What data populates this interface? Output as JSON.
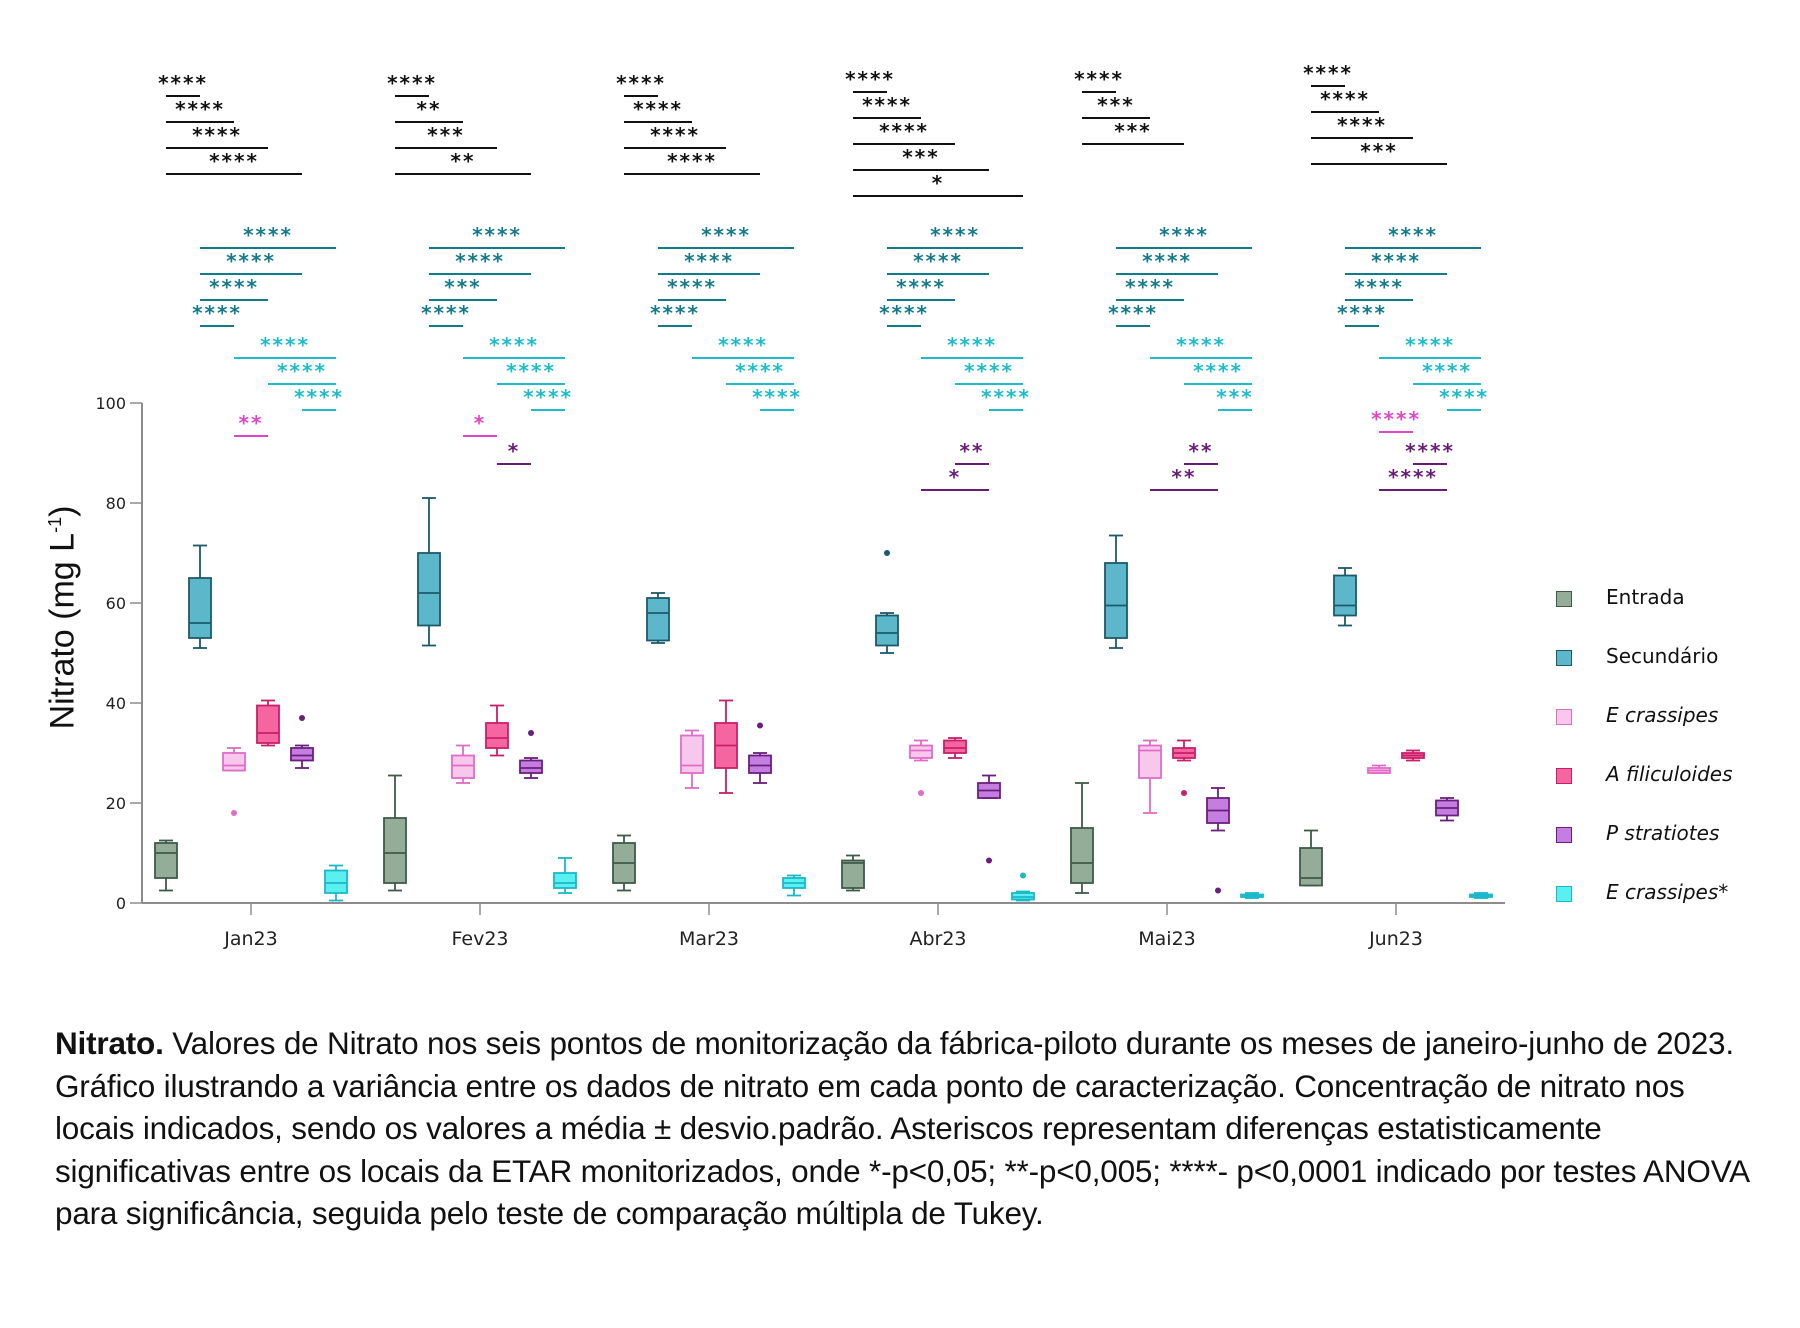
{
  "chart_data": {
    "type": "boxplot",
    "ylabel": "Nitrato (mg L",
    "ylabel_sup": "-1",
    "ylabel_close": ")",
    "ylim": [
      0,
      100
    ],
    "yticks": [
      "0",
      "20",
      "40",
      "60",
      "80",
      "100"
    ],
    "ytick_values": [
      0,
      20,
      40,
      60,
      80,
      100
    ],
    "categories": [
      "Jan23",
      "Fev23",
      "Mar23",
      "Abr23",
      "Mai23",
      "Jun23"
    ],
    "legend_position": "right",
    "series": [
      {
        "name": "Entrada",
        "italic": false,
        "fill": "#94ad98",
        "stroke": "#3f5a48",
        "boxes": [
          {
            "min": 2.5,
            "q1": 5,
            "median": 10,
            "q3": 12,
            "max": 12.5,
            "outliers": []
          },
          {
            "min": 2.5,
            "q1": 4,
            "median": 10,
            "q3": 17,
            "max": 25.5,
            "outliers": []
          },
          {
            "min": 2.5,
            "q1": 4,
            "median": 8,
            "q3": 12,
            "max": 13.5,
            "outliers": []
          },
          {
            "min": 2.5,
            "q1": 3,
            "median": 8,
            "q3": 8.5,
            "max": 9.5,
            "outliers": []
          },
          {
            "min": 2,
            "q1": 4,
            "median": 8,
            "q3": 15,
            "max": 24,
            "outliers": []
          },
          {
            "min": 3.5,
            "q1": 3.5,
            "median": 5,
            "q3": 11,
            "max": 14.5,
            "outliers": []
          }
        ]
      },
      {
        "name": "Secundário",
        "italic": false,
        "fill": "#5bb7c9",
        "stroke": "#1b5a6b",
        "boxes": [
          {
            "min": 51,
            "q1": 53,
            "median": 56,
            "q3": 65,
            "max": 71.5,
            "outliers": []
          },
          {
            "min": 51.5,
            "q1": 55.5,
            "median": 62,
            "q3": 70,
            "max": 81,
            "outliers": []
          },
          {
            "min": 52,
            "q1": 52.5,
            "median": 58,
            "q3": 61,
            "max": 62,
            "outliers": []
          },
          {
            "min": 50,
            "q1": 51.5,
            "median": 54,
            "q3": 57.5,
            "max": 58,
            "outliers": [
              70
            ]
          },
          {
            "min": 51,
            "q1": 53,
            "median": 59.5,
            "q3": 68,
            "max": 73.5,
            "outliers": []
          },
          {
            "min": 55.5,
            "q1": 57.5,
            "median": 59.5,
            "q3": 65.5,
            "max": 67,
            "outliers": []
          }
        ]
      },
      {
        "name": "E crassipes",
        "italic": true,
        "fill": "#f8c8ec",
        "stroke": "#e06cc8",
        "boxes": [
          {
            "min": 26.5,
            "q1": 26.5,
            "median": 27.5,
            "q3": 30,
            "max": 31,
            "outliers": [
              18
            ]
          },
          {
            "min": 24,
            "q1": 25,
            "median": 27.5,
            "q3": 29.5,
            "max": 31.5,
            "outliers": []
          },
          {
            "min": 23,
            "q1": 26,
            "median": 27.5,
            "q3": 33.5,
            "max": 34.5,
            "outliers": []
          },
          {
            "min": 28.5,
            "q1": 29,
            "median": 30.5,
            "q3": 31.5,
            "max": 32.5,
            "outliers": [
              22
            ]
          },
          {
            "min": 18,
            "q1": 25,
            "median": 30.5,
            "q3": 31.5,
            "max": 32.5,
            "outliers": []
          },
          {
            "min": 26,
            "q1": 26,
            "median": 26.5,
            "q3": 27,
            "max": 27.5,
            "outliers": []
          }
        ]
      },
      {
        "name": "A filiculoides",
        "italic": true,
        "fill": "#f565a0",
        "stroke": "#c91e6a",
        "boxes": [
          {
            "min": 31.5,
            "q1": 32,
            "median": 34,
            "q3": 39.5,
            "max": 40.5,
            "outliers": []
          },
          {
            "min": 29.5,
            "q1": 31,
            "median": 33,
            "q3": 36,
            "max": 39.5,
            "outliers": []
          },
          {
            "min": 22,
            "q1": 27,
            "median": 31.5,
            "q3": 36,
            "max": 40.5,
            "outliers": []
          },
          {
            "min": 29,
            "q1": 30,
            "median": 31,
            "q3": 32.5,
            "max": 33,
            "outliers": []
          },
          {
            "min": 28.5,
            "q1": 29,
            "median": 30,
            "q3": 31,
            "max": 32.5,
            "outliers": [
              22
            ]
          },
          {
            "min": 28.5,
            "q1": 29,
            "median": 29.5,
            "q3": 30,
            "max": 30.5,
            "outliers": []
          }
        ]
      },
      {
        "name": "P stratiotes",
        "italic": true,
        "fill": "#c47ee0",
        "stroke": "#6b1e7e",
        "boxes": [
          {
            "min": 27,
            "q1": 28.5,
            "median": 29.5,
            "q3": 31,
            "max": 31.5,
            "outliers": [
              37
            ]
          },
          {
            "min": 25,
            "q1": 26,
            "median": 27,
            "q3": 28.5,
            "max": 29,
            "outliers": [
              34
            ]
          },
          {
            "min": 24,
            "q1": 26,
            "median": 27.5,
            "q3": 29.5,
            "max": 30,
            "outliers": [
              35.5
            ]
          },
          {
            "min": 21,
            "q1": 21,
            "median": 22.5,
            "q3": 24,
            "max": 25.5,
            "outliers": [
              8.5
            ]
          },
          {
            "min": 14.5,
            "q1": 16,
            "median": 18.5,
            "q3": 21,
            "max": 23,
            "outliers": [
              2.5
            ]
          },
          {
            "min": 16.5,
            "q1": 17.5,
            "median": 19,
            "q3": 20.5,
            "max": 21,
            "outliers": []
          }
        ]
      },
      {
        "name": "E crassipes*",
        "italic": true,
        "fill": "#5af0f0",
        "stroke": "#1ab8c8",
        "boxes": [
          {
            "min": 0.5,
            "q1": 2,
            "median": 4,
            "q3": 6.5,
            "max": 7.5,
            "outliers": []
          },
          {
            "min": 2,
            "q1": 3,
            "median": 4,
            "q3": 6,
            "max": 9,
            "outliers": []
          },
          {
            "min": 1.5,
            "q1": 3,
            "median": 4,
            "q3": 5,
            "max": 5.5,
            "outliers": []
          },
          {
            "min": 0.5,
            "q1": 0.7,
            "median": 1.2,
            "q3": 2,
            "max": 2.3,
            "outliers": [
              5.5
            ]
          },
          {
            "min": 1,
            "q1": 1.2,
            "median": 1.5,
            "q3": 1.7,
            "max": 2,
            "outliers": []
          },
          {
            "min": 1,
            "q1": 1.2,
            "median": 1.5,
            "q3": 1.7,
            "max": 2,
            "outliers": []
          }
        ]
      }
    ],
    "significance": [
      {
        "month": "Jan23",
        "groups": [
          {
            "color": "#111111",
            "pairs": [
              [
                0,
                1,
                "****"
              ],
              [
                0,
                2,
                "****"
              ],
              [
                0,
                3,
                "****"
              ],
              [
                0,
                4,
                "****"
              ]
            ]
          },
          {
            "color": "#137a8c",
            "pairs": [
              [
                1,
                5,
                "****"
              ],
              [
                1,
                4,
                "****"
              ],
              [
                1,
                3,
                "****"
              ],
              [
                1,
                2,
                "****"
              ]
            ]
          },
          {
            "color": "#1cbccc",
            "pairs": [
              [
                2,
                5,
                "****"
              ],
              [
                3,
                5,
                "****"
              ],
              [
                4,
                5,
                "****"
              ]
            ]
          },
          {
            "color": "#e246c8",
            "pairs": [
              [
                2,
                3,
                "**"
              ]
            ]
          }
        ]
      },
      {
        "month": "Fev23",
        "groups": [
          {
            "color": "#111111",
            "pairs": [
              [
                0,
                1,
                "****"
              ],
              [
                0,
                2,
                "**"
              ],
              [
                0,
                3,
                "***"
              ],
              [
                0,
                4,
                "**"
              ]
            ]
          },
          {
            "color": "#137a8c",
            "pairs": [
              [
                1,
                5,
                "****"
              ],
              [
                1,
                4,
                "****"
              ],
              [
                1,
                3,
                "***"
              ],
              [
                1,
                2,
                "****"
              ]
            ]
          },
          {
            "color": "#1cbccc",
            "pairs": [
              [
                2,
                5,
                "****"
              ],
              [
                3,
                5,
                "****"
              ],
              [
                4,
                5,
                "****"
              ]
            ]
          },
          {
            "color": "#e246c8",
            "pairs": [
              [
                2,
                3,
                "*"
              ]
            ]
          },
          {
            "color": "#6a1b78",
            "pairs": [
              [
                3,
                4,
                "*"
              ]
            ]
          }
        ]
      },
      {
        "month": "Mar23",
        "groups": [
          {
            "color": "#111111",
            "pairs": [
              [
                0,
                1,
                "****"
              ],
              [
                0,
                2,
                "****"
              ],
              [
                0,
                3,
                "****"
              ],
              [
                0,
                4,
                "****"
              ]
            ]
          },
          {
            "color": "#137a8c",
            "pairs": [
              [
                1,
                5,
                "****"
              ],
              [
                1,
                4,
                "****"
              ],
              [
                1,
                3,
                "****"
              ],
              [
                1,
                2,
                "****"
              ]
            ]
          },
          {
            "color": "#1cbccc",
            "pairs": [
              [
                2,
                5,
                "****"
              ],
              [
                3,
                5,
                "****"
              ],
              [
                4,
                5,
                "****"
              ]
            ]
          }
        ]
      },
      {
        "month": "Abr23",
        "groups": [
          {
            "color": "#111111",
            "pairs": [
              [
                0,
                1,
                "****"
              ],
              [
                0,
                2,
                "****"
              ],
              [
                0,
                3,
                "****"
              ],
              [
                0,
                4,
                "***"
              ],
              [
                0,
                5,
                "*"
              ]
            ]
          },
          {
            "color": "#137a8c",
            "pairs": [
              [
                1,
                5,
                "****"
              ],
              [
                1,
                4,
                "****"
              ],
              [
                1,
                3,
                "****"
              ],
              [
                1,
                2,
                "****"
              ]
            ]
          },
          {
            "color": "#1cbccc",
            "pairs": [
              [
                2,
                5,
                "****"
              ],
              [
                3,
                5,
                "****"
              ],
              [
                4,
                5,
                "****"
              ]
            ]
          },
          {
            "color": "#6a1b78",
            "pairs": [
              [
                3,
                4,
                "**"
              ],
              [
                2,
                4,
                "*"
              ]
            ]
          }
        ]
      },
      {
        "month": "Mai23",
        "groups": [
          {
            "color": "#111111",
            "pairs": [
              [
                0,
                1,
                "****"
              ],
              [
                0,
                2,
                "***"
              ],
              [
                0,
                3,
                "***"
              ]
            ]
          },
          {
            "color": "#137a8c",
            "pairs": [
              [
                1,
                5,
                "****"
              ],
              [
                1,
                4,
                "****"
              ],
              [
                1,
                3,
                "****"
              ],
              [
                1,
                2,
                "****"
              ]
            ]
          },
          {
            "color": "#1cbccc",
            "pairs": [
              [
                2,
                5,
                "****"
              ],
              [
                3,
                5,
                "****"
              ],
              [
                4,
                5,
                "***"
              ]
            ]
          },
          {
            "color": "#6a1b78",
            "pairs": [
              [
                3,
                4,
                "**"
              ],
              [
                2,
                4,
                "**"
              ]
            ]
          }
        ]
      },
      {
        "month": "Jun23",
        "groups": [
          {
            "color": "#111111",
            "pairs": [
              [
                0,
                1,
                "****"
              ],
              [
                0,
                2,
                "****"
              ],
              [
                0,
                3,
                "****"
              ],
              [
                0,
                4,
                "***"
              ]
            ]
          },
          {
            "color": "#137a8c",
            "pairs": [
              [
                1,
                5,
                "****"
              ],
              [
                1,
                4,
                "****"
              ],
              [
                1,
                3,
                "****"
              ],
              [
                1,
                2,
                "****"
              ]
            ]
          },
          {
            "color": "#1cbccc",
            "pairs": [
              [
                2,
                5,
                "****"
              ],
              [
                3,
                5,
                "****"
              ],
              [
                4,
                5,
                "****"
              ]
            ]
          },
          {
            "color": "#e246c8",
            "pairs": [
              [
                2,
                3,
                "****"
              ]
            ]
          },
          {
            "color": "#6a1b78",
            "pairs": [
              [
                3,
                4,
                "****"
              ],
              [
                2,
                4,
                "****"
              ]
            ]
          }
        ]
      }
    ]
  },
  "caption": {
    "title": "Nitrato.",
    "body": " Valores de Nitrato nos seis pontos de monitorização da fábrica-piloto durante os meses de janeiro-junho de 2023. Gráfico ilustrando a variância entre os dados de nitrato em cada ponto de caracterização. Concentração de nitrato nos locais indicados, sendo os valores a média ± desvio.padrão. Asteriscos representam diferenças estatisticamente significativas entre os locais da ETAR monitorizados, onde *-p<0,05; **-p<0,005; ****- p<0,0001 indicado por testes ANOVA para significância, seguida pelo teste de comparação múltipla de Tukey."
  }
}
